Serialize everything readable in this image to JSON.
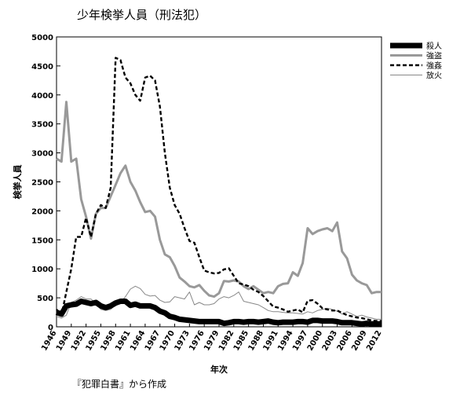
{
  "page": {
    "title": "少年検挙人員（刑法犯）",
    "source": "『犯罪白書』から作成"
  },
  "chart_data": {
    "type": "line",
    "title": "少年検挙人員（刑法犯）",
    "xlabel": "年次",
    "ylabel": "検挙人員",
    "ylim": [
      0,
      5000
    ],
    "yticks": [
      0,
      500,
      1000,
      1500,
      2000,
      2500,
      3000,
      3500,
      4000,
      4500,
      5000
    ],
    "xlim": [
      1946,
      2012
    ],
    "xticks": [
      1946,
      1949,
      1952,
      1955,
      1958,
      1961,
      1964,
      1967,
      1970,
      1973,
      1976,
      1979,
      1982,
      1985,
      1988,
      1991,
      1994,
      1997,
      2000,
      2003,
      2006,
      2009,
      2012
    ],
    "grid": false,
    "legend_position": "top-right",
    "series": [
      {
        "name": "殺人",
        "style": "thick-solid",
        "color": "#000000",
        "points": [
          [
            1946,
            250
          ],
          [
            1947,
            220
          ],
          [
            1948,
            360
          ],
          [
            1949,
            380
          ],
          [
            1950,
            390
          ],
          [
            1951,
            440
          ],
          [
            1952,
            420
          ],
          [
            1953,
            400
          ],
          [
            1954,
            420
          ],
          [
            1955,
            360
          ],
          [
            1956,
            330
          ],
          [
            1957,
            360
          ],
          [
            1958,
            410
          ],
          [
            1959,
            440
          ],
          [
            1960,
            440
          ],
          [
            1961,
            370
          ],
          [
            1962,
            390
          ],
          [
            1963,
            360
          ],
          [
            1964,
            360
          ],
          [
            1965,
            360
          ],
          [
            1966,
            330
          ],
          [
            1967,
            270
          ],
          [
            1968,
            240
          ],
          [
            1969,
            180
          ],
          [
            1970,
            160
          ],
          [
            1971,
            130
          ],
          [
            1972,
            120
          ],
          [
            1973,
            110
          ],
          [
            1974,
            100
          ],
          [
            1975,
            90
          ],
          [
            1976,
            90
          ],
          [
            1977,
            90
          ],
          [
            1978,
            90
          ],
          [
            1979,
            90
          ],
          [
            1980,
            60
          ],
          [
            1981,
            70
          ],
          [
            1982,
            90
          ],
          [
            1983,
            90
          ],
          [
            1984,
            80
          ],
          [
            1985,
            90
          ],
          [
            1986,
            90
          ],
          [
            1987,
            80
          ],
          [
            1988,
            90
          ],
          [
            1989,
            100
          ],
          [
            1990,
            80
          ],
          [
            1991,
            70
          ],
          [
            1992,
            80
          ],
          [
            1993,
            80
          ],
          [
            1994,
            80
          ],
          [
            1995,
            90
          ],
          [
            1996,
            90
          ],
          [
            1997,
            80
          ],
          [
            1998,
            110
          ],
          [
            1999,
            110
          ],
          [
            2000,
            100
          ],
          [
            2001,
            100
          ],
          [
            2002,
            100
          ],
          [
            2003,
            90
          ],
          [
            2004,
            70
          ],
          [
            2005,
            70
          ],
          [
            2006,
            70
          ],
          [
            2007,
            60
          ],
          [
            2008,
            50
          ],
          [
            2009,
            60
          ],
          [
            2010,
            50
          ],
          [
            2011,
            50
          ],
          [
            2012,
            50
          ]
        ]
      },
      {
        "name": "強盗",
        "style": "medium-gray",
        "color": "#999999",
        "points": [
          [
            1946,
            2900
          ],
          [
            1947,
            2850
          ],
          [
            1948,
            3880
          ],
          [
            1949,
            2850
          ],
          [
            1950,
            2900
          ],
          [
            1951,
            2200
          ],
          [
            1952,
            1900
          ],
          [
            1953,
            1520
          ],
          [
            1954,
            1950
          ],
          [
            1955,
            2050
          ],
          [
            1956,
            2050
          ],
          [
            1957,
            2250
          ],
          [
            1958,
            2450
          ],
          [
            1959,
            2650
          ],
          [
            1960,
            2780
          ],
          [
            1961,
            2500
          ],
          [
            1962,
            2350
          ],
          [
            1963,
            2150
          ],
          [
            1964,
            1980
          ],
          [
            1965,
            2000
          ],
          [
            1966,
            1900
          ],
          [
            1967,
            1500
          ],
          [
            1968,
            1250
          ],
          [
            1969,
            1200
          ],
          [
            1970,
            1050
          ],
          [
            1971,
            850
          ],
          [
            1972,
            780
          ],
          [
            1973,
            700
          ],
          [
            1974,
            680
          ],
          [
            1975,
            720
          ],
          [
            1976,
            620
          ],
          [
            1977,
            540
          ],
          [
            1978,
            520
          ],
          [
            1979,
            580
          ],
          [
            1980,
            790
          ],
          [
            1981,
            780
          ],
          [
            1982,
            800
          ],
          [
            1983,
            780
          ],
          [
            1984,
            700
          ],
          [
            1985,
            650
          ],
          [
            1986,
            700
          ],
          [
            1987,
            640
          ],
          [
            1988,
            580
          ],
          [
            1989,
            600
          ],
          [
            1990,
            580
          ],
          [
            1991,
            700
          ],
          [
            1992,
            740
          ],
          [
            1993,
            750
          ],
          [
            1994,
            940
          ],
          [
            1995,
            880
          ],
          [
            1996,
            1100
          ],
          [
            1997,
            1700
          ],
          [
            1998,
            1600
          ],
          [
            1999,
            1650
          ],
          [
            2000,
            1680
          ],
          [
            2001,
            1700
          ],
          [
            2002,
            1650
          ],
          [
            2003,
            1800
          ],
          [
            2004,
            1300
          ],
          [
            2005,
            1180
          ],
          [
            2006,
            900
          ],
          [
            2007,
            800
          ],
          [
            2008,
            750
          ],
          [
            2009,
            720
          ],
          [
            2010,
            580
          ],
          [
            2011,
            600
          ],
          [
            2012,
            600
          ]
        ]
      },
      {
        "name": "強姦",
        "style": "dashed",
        "color": "#000000",
        "points": [
          [
            1946,
            300
          ],
          [
            1947,
            200
          ],
          [
            1948,
            600
          ],
          [
            1949,
            1000
          ],
          [
            1950,
            1550
          ],
          [
            1951,
            1550
          ],
          [
            1952,
            1880
          ],
          [
            1953,
            1550
          ],
          [
            1954,
            1950
          ],
          [
            1955,
            2100
          ],
          [
            1956,
            2050
          ],
          [
            1957,
            2400
          ],
          [
            1958,
            4640
          ],
          [
            1959,
            4600
          ],
          [
            1960,
            4300
          ],
          [
            1961,
            4200
          ],
          [
            1962,
            4000
          ],
          [
            1963,
            3900
          ],
          [
            1964,
            4300
          ],
          [
            1965,
            4330
          ],
          [
            1966,
            4250
          ],
          [
            1967,
            3800
          ],
          [
            1968,
            3000
          ],
          [
            1969,
            2400
          ],
          [
            1970,
            2100
          ],
          [
            1971,
            1950
          ],
          [
            1972,
            1700
          ],
          [
            1973,
            1480
          ],
          [
            1974,
            1450
          ],
          [
            1975,
            1200
          ],
          [
            1976,
            970
          ],
          [
            1977,
            940
          ],
          [
            1978,
            920
          ],
          [
            1979,
            930
          ],
          [
            1980,
            990
          ],
          [
            1981,
            1010
          ],
          [
            1982,
            880
          ],
          [
            1983,
            750
          ],
          [
            1984,
            730
          ],
          [
            1985,
            700
          ],
          [
            1986,
            640
          ],
          [
            1987,
            600
          ],
          [
            1988,
            530
          ],
          [
            1989,
            440
          ],
          [
            1990,
            350
          ],
          [
            1991,
            330
          ],
          [
            1992,
            300
          ],
          [
            1993,
            260
          ],
          [
            1994,
            280
          ],
          [
            1995,
            300
          ],
          [
            1996,
            250
          ],
          [
            1997,
            450
          ],
          [
            1998,
            460
          ],
          [
            1999,
            400
          ],
          [
            2000,
            320
          ],
          [
            2001,
            300
          ],
          [
            2002,
            280
          ],
          [
            2003,
            280
          ],
          [
            2004,
            240
          ],
          [
            2005,
            200
          ],
          [
            2006,
            180
          ],
          [
            2007,
            160
          ],
          [
            2008,
            150
          ],
          [
            2009,
            130
          ],
          [
            2010,
            110
          ],
          [
            2011,
            100
          ],
          [
            2012,
            100
          ]
        ]
      },
      {
        "name": "放火",
        "style": "thin-gray",
        "color": "#888888",
        "points": [
          [
            1946,
            180
          ],
          [
            1947,
            150
          ],
          [
            1948,
            200
          ],
          [
            1949,
            420
          ],
          [
            1950,
            460
          ],
          [
            1951,
            520
          ],
          [
            1952,
            480
          ],
          [
            1953,
            480
          ],
          [
            1954,
            400
          ],
          [
            1955,
            300
          ],
          [
            1956,
            280
          ],
          [
            1957,
            300
          ],
          [
            1958,
            380
          ],
          [
            1959,
            420
          ],
          [
            1960,
            520
          ],
          [
            1961,
            650
          ],
          [
            1962,
            700
          ],
          [
            1963,
            660
          ],
          [
            1964,
            560
          ],
          [
            1965,
            530
          ],
          [
            1966,
            540
          ],
          [
            1967,
            460
          ],
          [
            1968,
            420
          ],
          [
            1969,
            430
          ],
          [
            1970,
            520
          ],
          [
            1971,
            500
          ],
          [
            1972,
            480
          ],
          [
            1973,
            600
          ],
          [
            1974,
            380
          ],
          [
            1975,
            420
          ],
          [
            1976,
            380
          ],
          [
            1977,
            380
          ],
          [
            1978,
            400
          ],
          [
            1979,
            480
          ],
          [
            1980,
            520
          ],
          [
            1981,
            500
          ],
          [
            1982,
            540
          ],
          [
            1983,
            600
          ],
          [
            1984,
            440
          ],
          [
            1985,
            420
          ],
          [
            1986,
            400
          ],
          [
            1987,
            380
          ],
          [
            1988,
            330
          ],
          [
            1989,
            280
          ],
          [
            1990,
            260
          ],
          [
            1991,
            260
          ],
          [
            1992,
            250
          ],
          [
            1993,
            240
          ],
          [
            1994,
            240
          ],
          [
            1995,
            230
          ],
          [
            1996,
            220
          ],
          [
            1997,
            260
          ],
          [
            1998,
            240
          ],
          [
            1999,
            280
          ],
          [
            2000,
            300
          ],
          [
            2001,
            320
          ],
          [
            2002,
            300
          ],
          [
            2003,
            270
          ],
          [
            2004,
            220
          ],
          [
            2005,
            260
          ],
          [
            2006,
            220
          ],
          [
            2007,
            180
          ],
          [
            2008,
            200
          ],
          [
            2009,
            170
          ],
          [
            2010,
            150
          ],
          [
            2011,
            130
          ],
          [
            2012,
            130
          ]
        ]
      }
    ]
  }
}
